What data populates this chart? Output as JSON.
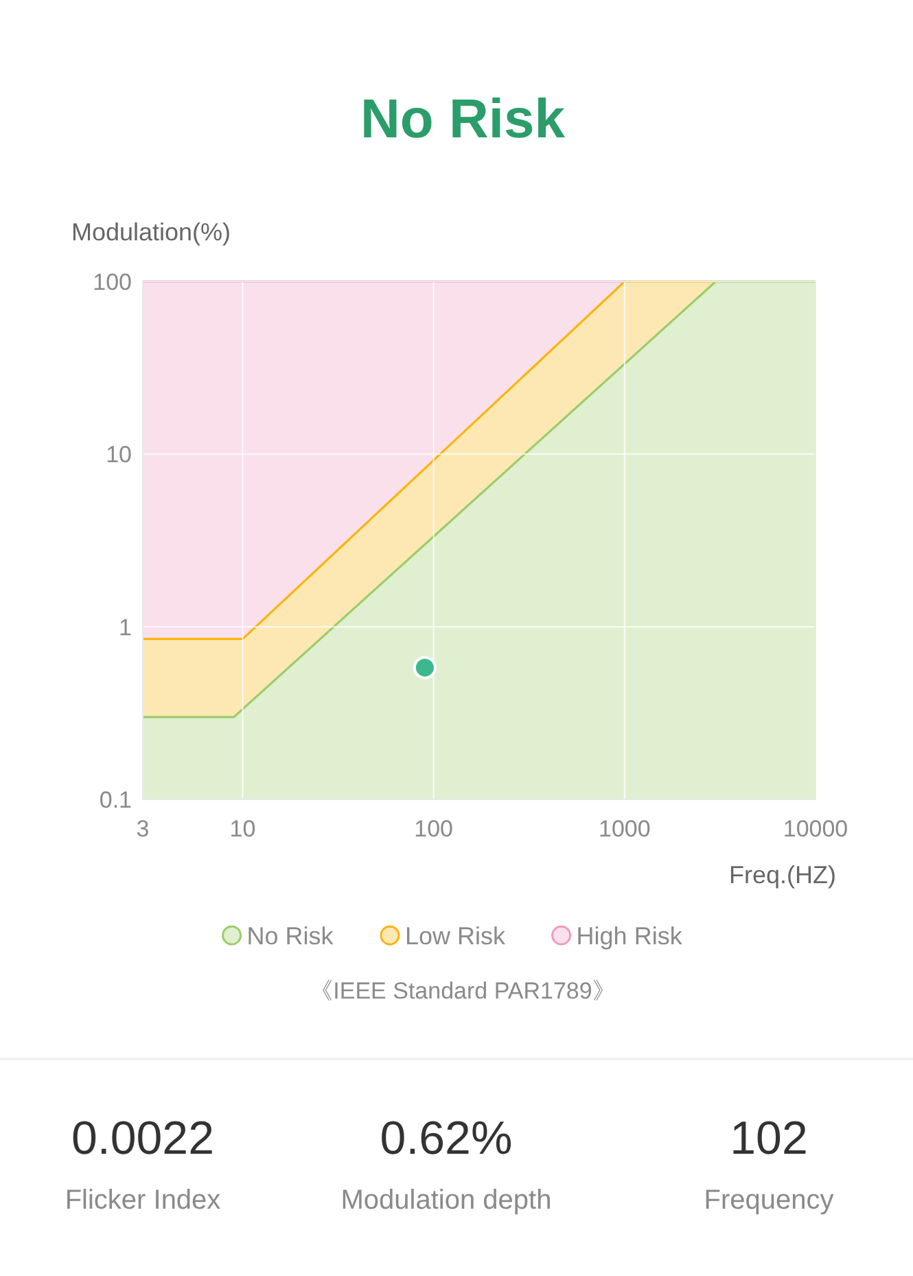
{
  "chart_data": [
    {
      "type": "area",
      "title": "No Risk",
      "xlabel": "Freq.(HZ)",
      "ylabel": "Modulation(%)",
      "log": "xy",
      "xlim": [
        3,
        10000
      ],
      "ylim": [
        0.1,
        100
      ],
      "xticks": [
        3,
        10,
        100,
        1000,
        10000
      ],
      "yticks": [
        0.1,
        1,
        10,
        100
      ],
      "grid": true,
      "legend": "bottom",
      "series": [
        {
          "name": "No Risk",
          "color": "#e0efd0",
          "x": [
            3,
            9,
            3000,
            10000
          ],
          "values": [
            0.3,
            0.3,
            100,
            100
          ]
        },
        {
          "name": "Low Risk",
          "color": "#fde8b4",
          "x": [
            3,
            10,
            1000,
            3000
          ],
          "values": [
            0.85,
            0.85,
            100,
            100
          ]
        },
        {
          "name": "High Risk",
          "color": "#fae0ea",
          "x": [
            3,
            1000
          ],
          "values": [
            100,
            100
          ]
        },
        {
          "type": "scatter",
          "color": "#3cb98c",
          "x": [
            90
          ],
          "values": [
            0.58
          ]
        }
      ],
      "annotations": [
        "《IEEE Standard PAR1789》"
      ]
    },
    {
      "type": "other",
      "annotations": [
        "0.0022",
        "Flicker Index",
        "0.62%",
        "Modulation depth",
        "102",
        "Frequency"
      ]
    }
  ]
}
